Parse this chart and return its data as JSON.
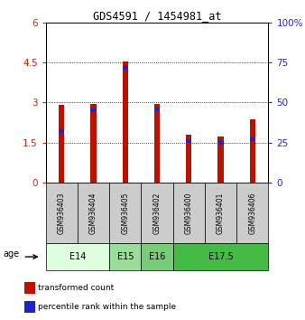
{
  "title": "GDS4591 / 1454981_at",
  "samples": [
    "GSM936403",
    "GSM936404",
    "GSM936405",
    "GSM936402",
    "GSM936400",
    "GSM936401",
    "GSM936406"
  ],
  "red_values": [
    2.9,
    2.95,
    4.55,
    2.95,
    1.8,
    1.72,
    2.35
  ],
  "blue_values": [
    2.0,
    2.78,
    4.38,
    2.82,
    1.63,
    1.57,
    1.7
  ],
  "blue_segment_height": [
    0.15,
    0.15,
    0.15,
    0.15,
    0.15,
    0.15,
    0.15
  ],
  "ylim_left": [
    0,
    6
  ],
  "ylim_right": [
    0,
    100
  ],
  "yticks_left": [
    0,
    1.5,
    3.0,
    4.5,
    6.0
  ],
  "yticklabels_left": [
    "0",
    "1.5",
    "3",
    "4.5",
    "6"
  ],
  "yticks_right": [
    0,
    25,
    50,
    75,
    100
  ],
  "yticklabels_right": [
    "0",
    "25",
    "50",
    "75",
    "100%"
  ],
  "age_groups": [
    {
      "label": "E14",
      "start": 0,
      "end": 2,
      "color": "#ddffdd"
    },
    {
      "label": "E15",
      "start": 2,
      "end": 3,
      "color": "#99dd99"
    },
    {
      "label": "E16",
      "start": 3,
      "end": 4,
      "color": "#77cc77"
    },
    {
      "label": "E17.5",
      "start": 4,
      "end": 7,
      "color": "#44bb44"
    }
  ],
  "bar_color_red": "#bb1100",
  "bar_color_blue": "#2222cc",
  "bar_width": 0.18,
  "bg_color": "#ffffff",
  "sample_box_color": "#cccccc",
  "left_tick_color": "#cc2200",
  "right_tick_color": "#2222cc",
  "legend_red_label": "transformed count",
  "legend_blue_label": "percentile rank within the sample",
  "age_label": "age"
}
